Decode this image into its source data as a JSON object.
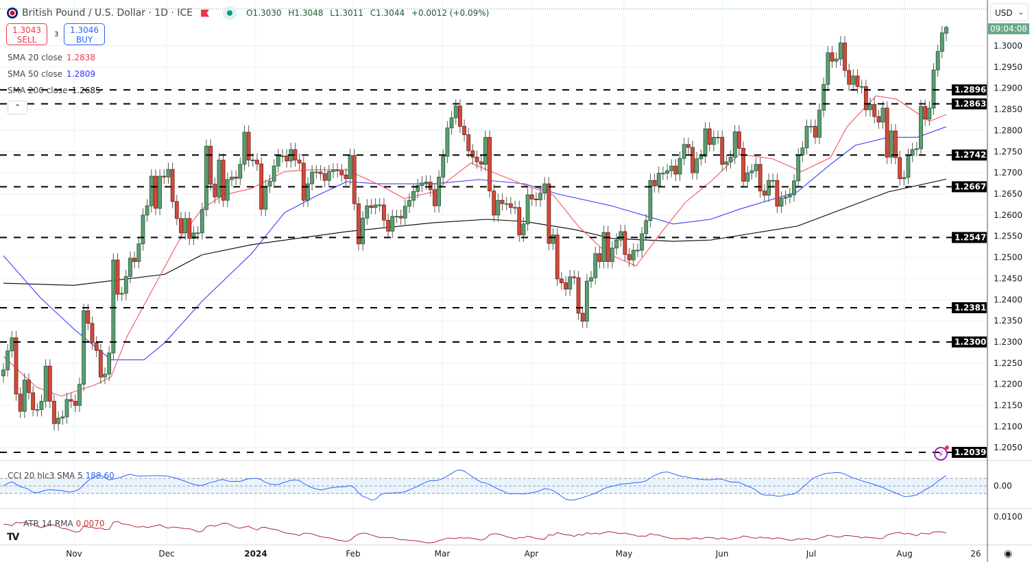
{
  "header": {
    "symbol_title": "British Pound / U.S. Dollar · 1D · ICE",
    "ohlc": {
      "open": "O1.3030",
      "high": "H1.3048",
      "low": "L1.3011",
      "close": "C1.3044",
      "change": "+0.0012 (+0.09%)"
    },
    "icons": [
      "gb-us-flag-icon",
      "red-flag-icon",
      "market-open-dot-icon"
    ]
  },
  "trade": {
    "sell_price": "1.3043",
    "sell_label": "SELL",
    "spread": "3",
    "buy_price": "1.3046",
    "buy_label": "BUY"
  },
  "indicators": {
    "sma20": {
      "label": "SMA 20 close",
      "value": "1.2838",
      "color": "#f23645"
    },
    "sma50": {
      "label": "SMA 50 close",
      "value": "1.2809",
      "color": "#2f2fff"
    },
    "sma200": {
      "label": "SMA 200 close",
      "value": "1.2685",
      "color": "#000000"
    },
    "cci": {
      "label": "CCI 20 hlc3 SMA 5",
      "value": "188.60",
      "axis_label": "0.00"
    },
    "atr": {
      "label": "ATR 14 RMA",
      "value": "0.0070",
      "axis_label": "0.0100"
    }
  },
  "price_axis": {
    "currency": "USD",
    "countdown": "09:04:08"
  },
  "chart_data": {
    "type": "candlestick",
    "title": "British Pound / U.S. Dollar · 1D · ICE",
    "ylim": [
      1.2035,
      1.306
    ],
    "y_ticks": [
      1.3,
      1.295,
      1.29,
      1.285,
      1.28,
      1.275,
      1.27,
      1.265,
      1.26,
      1.255,
      1.25,
      1.245,
      1.24,
      1.235,
      1.23,
      1.225,
      1.22,
      1.215,
      1.21,
      1.205
    ],
    "x_ticks": [
      "Nov",
      "Dec",
      "2024",
      "Feb",
      "Mar",
      "Apr",
      "May",
      "Jun",
      "Jul",
      "Aug",
      "26"
    ],
    "grid": true,
    "colors": {
      "up": "#5e9d72",
      "down": "#d24a3b",
      "up_border": "#1e5631",
      "down_border": "#6e1f17"
    },
    "horizontal_levels": [
      1.2896,
      1.2863,
      1.2742,
      1.2667,
      1.2547,
      1.2381,
      1.23,
      1.2039
    ],
    "close": [
      1.2234,
      1.2279,
      1.231,
      1.2177,
      1.2136,
      1.221,
      1.218,
      1.214,
      1.214,
      1.216,
      1.2243,
      1.216,
      1.2107,
      1.212,
      1.2123,
      1.2164,
      1.216,
      1.215,
      1.22,
      1.2374,
      1.2344,
      1.2298,
      1.228,
      1.2217,
      1.2224,
      1.2274,
      1.2494,
      1.2413,
      1.2415,
      1.2455,
      1.2498,
      1.249,
      1.2532,
      1.26,
      1.2622,
      1.2692,
      1.2616,
      1.2692,
      1.269,
      1.2708,
      1.2632,
      1.2592,
      1.2558,
      1.2592,
      1.2545,
      1.2558,
      1.2558,
      1.2613,
      1.2763,
      1.2673,
      1.2643,
      1.273,
      1.2635,
      1.2684,
      1.269,
      1.2687,
      1.272,
      1.2796,
      1.273,
      1.273,
      1.2721,
      1.2614,
      1.2668,
      1.268,
      1.2716,
      1.274,
      1.274,
      1.2728,
      1.2755,
      1.273,
      1.2723,
      1.2635,
      1.2674,
      1.2702,
      1.2702,
      1.2698,
      1.2682,
      1.2703,
      1.2707,
      1.2705,
      1.2695,
      1.2686,
      1.2741,
      1.2627,
      1.2532,
      1.2593,
      1.2622,
      1.2618,
      1.2624,
      1.2624,
      1.2588,
      1.2562,
      1.2597,
      1.2597,
      1.2593,
      1.2621,
      1.2635,
      1.2656,
      1.267,
      1.2676,
      1.2678,
      1.266,
      1.2622,
      1.269,
      1.2739,
      1.2806,
      1.283,
      1.2858,
      1.281,
      1.279,
      1.2752,
      1.2737,
      1.2726,
      1.272,
      1.2784,
      1.2657,
      1.26,
      1.2635,
      1.2627,
      1.2627,
      1.2618,
      1.2618,
      1.2553,
      1.2579,
      1.2648,
      1.2638,
      1.2636,
      1.2652,
      1.2674,
      1.2533,
      1.2553,
      1.2449,
      1.244,
      1.2425,
      1.2454,
      1.2452,
      1.2368,
      1.2349,
      1.2444,
      1.2452,
      1.2509,
      1.249,
      1.2559,
      1.249,
      1.2522,
      1.2541,
      1.2561,
      1.2507,
      1.2494,
      1.2517,
      1.2517,
      1.2556,
      1.2587,
      1.2682,
      1.2669,
      1.2699,
      1.2699,
      1.2705,
      1.2716,
      1.2697,
      1.2734,
      1.2767,
      1.276,
      1.27,
      1.2733,
      1.2739,
      1.2804,
      1.2767,
      1.2784,
      1.2784,
      1.272,
      1.2726,
      1.2737,
      1.2797,
      1.2758,
      1.268,
      1.27,
      1.2705,
      1.272,
      1.2657,
      1.2647,
      1.2682,
      1.2682,
      1.2621,
      1.264,
      1.2643,
      1.2648,
      1.2681,
      1.2742,
      1.2759,
      1.281,
      1.281,
      1.2784,
      1.2848,
      1.2909,
      1.2984,
      1.2964,
      1.2969,
      1.3007,
      1.2942,
      1.2909,
      1.2929,
      1.2904,
      1.2904,
      1.2849,
      1.2862,
      1.2833,
      1.282,
      1.2853,
      1.2737,
      1.2799,
      1.2736,
      1.2686,
      1.2689,
      1.2741,
      1.2755,
      1.2757,
      1.2857,
      1.2827,
      1.2853,
      1.2943,
      1.2987,
      1.3031,
      1.3044
    ],
    "last_bar": {
      "open": 1.303,
      "high": 1.3048,
      "low": 1.3011,
      "close": 1.3044
    },
    "sma_lines": {
      "sma20": [
        [
          0,
          1.2266
        ],
        [
          8,
          1.2193
        ],
        [
          14,
          1.2172
        ],
        [
          17,
          1.2182
        ],
        [
          22,
          1.2198
        ],
        [
          26,
          1.2217
        ],
        [
          30,
          1.2315
        ],
        [
          39,
          1.2477
        ],
        [
          43,
          1.255
        ],
        [
          48,
          1.2614
        ],
        [
          53,
          1.2647
        ],
        [
          60,
          1.2663
        ],
        [
          68,
          1.2703
        ],
        [
          74,
          1.2707
        ],
        [
          83,
          1.2707
        ],
        [
          91,
          1.2671
        ],
        [
          97,
          1.2639
        ],
        [
          104,
          1.2655
        ],
        [
          113,
          1.2723
        ],
        [
          120,
          1.2695
        ],
        [
          126,
          1.2671
        ],
        [
          133,
          1.2647
        ],
        [
          139,
          1.2574
        ],
        [
          146,
          1.2509
        ],
        [
          153,
          1.248
        ],
        [
          159,
          1.2558
        ],
        [
          165,
          1.2631
        ],
        [
          171,
          1.2679
        ],
        [
          178,
          1.2744
        ],
        [
          186,
          1.2733
        ],
        [
          193,
          1.2703
        ],
        [
          200,
          1.2736
        ],
        [
          204,
          1.2809
        ],
        [
          211,
          1.2882
        ],
        [
          216,
          1.2874
        ],
        [
          221,
          1.2841
        ],
        [
          224,
          1.2822
        ],
        [
          228,
          1.2838
        ]
      ],
      "sma50": [
        [
          0,
          1.2504
        ],
        [
          9,
          1.2404
        ],
        [
          17,
          1.2331
        ],
        [
          26,
          1.2258
        ],
        [
          34,
          1.2258
        ],
        [
          39,
          1.2298
        ],
        [
          48,
          1.2396
        ],
        [
          60,
          1.2509
        ],
        [
          68,
          1.2606
        ],
        [
          76,
          1.2647
        ],
        [
          83,
          1.2679
        ],
        [
          91,
          1.2674
        ],
        [
          104,
          1.2674
        ],
        [
          115,
          1.2684
        ],
        [
          126,
          1.2674
        ],
        [
          134,
          1.265
        ],
        [
          147,
          1.2622
        ],
        [
          162,
          1.2579
        ],
        [
          171,
          1.259
        ],
        [
          178,
          1.2614
        ],
        [
          192,
          1.2655
        ],
        [
          200,
          1.272
        ],
        [
          206,
          1.2765
        ],
        [
          214,
          1.2784
        ],
        [
          221,
          1.2784
        ],
        [
          228,
          1.2809
        ]
      ],
      "sma200": [
        [
          0,
          1.2439
        ],
        [
          17,
          1.2434
        ],
        [
          39,
          1.246
        ],
        [
          48,
          1.2506
        ],
        [
          60,
          1.253
        ],
        [
          83,
          1.2561
        ],
        [
          104,
          1.2582
        ],
        [
          117,
          1.259
        ],
        [
          126,
          1.2585
        ],
        [
          138,
          1.2566
        ],
        [
          147,
          1.2545
        ],
        [
          162,
          1.2538
        ],
        [
          171,
          1.2541
        ],
        [
          192,
          1.2574
        ],
        [
          214,
          1.2655
        ],
        [
          228,
          1.2685
        ]
      ]
    }
  }
}
